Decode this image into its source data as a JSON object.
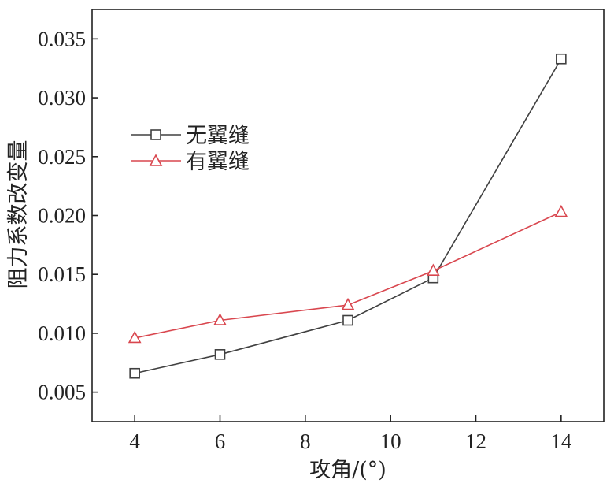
{
  "chart_data": {
    "type": "line",
    "xlabel": "攻角/(°)",
    "ylabel": "阻力系数改变量",
    "xlim": [
      3,
      15
    ],
    "ylim": [
      0.0025,
      0.0375
    ],
    "xticks": [
      4,
      6,
      8,
      10,
      12,
      14
    ],
    "yticks": [
      0.005,
      0.01,
      0.015,
      0.02,
      0.025,
      0.03,
      0.035
    ],
    "xtick_labels": [
      "4",
      "6",
      "8",
      "10",
      "12",
      "14"
    ],
    "ytick_labels": [
      "0.005",
      "0.010",
      "0.015",
      "0.020",
      "0.025",
      "0.030",
      "0.035"
    ],
    "grid": false,
    "legend_position": "upper-left",
    "series": [
      {
        "name": "无翼缝",
        "marker": "square",
        "color": "#404040",
        "x": [
          4,
          6,
          9,
          11,
          14
        ],
        "y": [
          0.0066,
          0.0082,
          0.0111,
          0.0147,
          0.0333
        ]
      },
      {
        "name": "有翼缝",
        "marker": "triangle",
        "color": "#d9474f",
        "x": [
          4,
          6,
          9,
          11,
          14
        ],
        "y": [
          0.0096,
          0.0111,
          0.0124,
          0.0153,
          0.0203
        ]
      }
    ]
  }
}
